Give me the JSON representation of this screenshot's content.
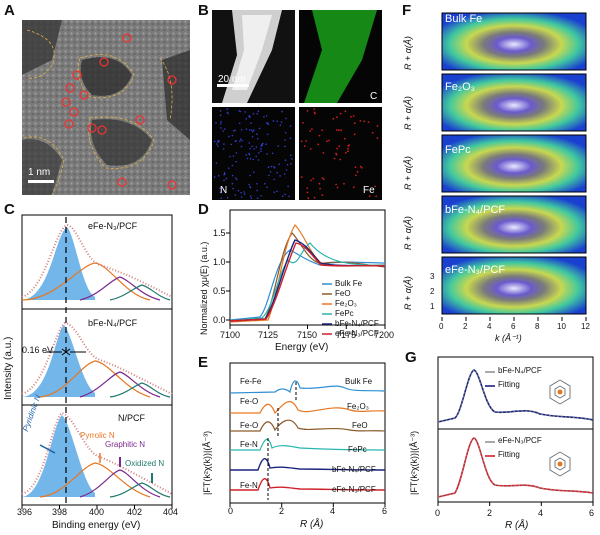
{
  "panels": {
    "A": "A",
    "B": "B",
    "C": "C",
    "D": "D",
    "E": "E",
    "F": "F",
    "G": "G"
  },
  "A": {
    "scale": "1 nm"
  },
  "B": {
    "scale": "20 nm",
    "maps": [
      "C",
      "N",
      "Fe"
    ]
  },
  "C": {
    "samples": [
      "eFe-N₃/PCF",
      "bFe-N₄/PCF",
      "N/PCF"
    ],
    "shift": "0.16 eV",
    "components": [
      "Pyridinic N",
      "Pyrrolic N",
      "Graphitic N",
      "Oxidized N"
    ],
    "xlabel": "Binding energy (eV)",
    "ylabel": "Intensity (a.u.)",
    "xticks": [
      "396",
      "398",
      "400",
      "402",
      "404"
    ]
  },
  "D": {
    "xlabel": "Energy (eV)",
    "ylabel": "Normalized χμ(E) (a.u.)",
    "xticks": [
      "7100",
      "7125",
      "7150",
      "7175",
      "7200"
    ],
    "yticks": [
      "0.0",
      "0.5",
      "1.0",
      "1.5"
    ],
    "legend": [
      "Bulk Fe",
      "FeO",
      "Fe₂O₃",
      "FePc",
      "bFe-N₄/PCF",
      "eFe-N₃/PCF"
    ]
  },
  "E": {
    "xlabel": "R (Å)",
    "ylabel": "|FT(k²χ(k))|(Å⁻³)",
    "xticks": [
      "0",
      "2",
      "4",
      "6"
    ],
    "curves": [
      "Bulk Fe",
      "Fe₂O₃",
      "FeO",
      "FePc",
      "bFe-N₄/PCF",
      "eFe-N₃/PCF"
    ],
    "bonds": [
      "Fe-Fe",
      "Fe-O",
      "Fe-O",
      "Fe-N",
      "Fe-N"
    ]
  },
  "F": {
    "samples": [
      "Bulk Fe",
      "Fe₂O₃",
      "FePc",
      "bFe-N₄/PCF",
      "eFe-N₃/PCF"
    ],
    "ylabel": "R + α(Å)",
    "xlabel": "k (Å⁻¹)",
    "yticks": [
      "1",
      "2",
      "3"
    ],
    "xticks": [
      "0",
      "2",
      "4",
      "6",
      "8",
      "10",
      "12"
    ]
  },
  "G": {
    "xlabel": "R (Å)",
    "ylabel": "|FT(k²χ(k))|(Å⁻³)",
    "xticks": [
      "0",
      "2",
      "4",
      "6"
    ],
    "top": {
      "sample": "bFe-N₄/PCF",
      "fit": "Fitting"
    },
    "bottom": {
      "sample": "eFe-N₃/PCF",
      "fit": "Fitting"
    }
  },
  "colors": {
    "bulkFe": "#2f8fd0",
    "FeO": "#8b5a2b",
    "Fe2O3": "#e87722",
    "FePc": "#27b5b0",
    "bFe": "#1a237e",
    "eFe": "#d0202a",
    "fill": "#5aa9e6"
  }
}
